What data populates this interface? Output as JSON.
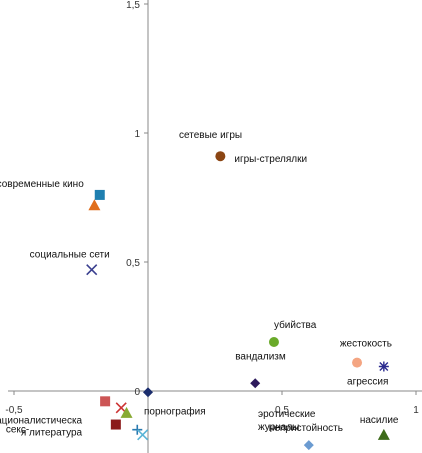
{
  "chart_data": {
    "type": "scatter",
    "title": "",
    "xlabel": "",
    "ylabel": "",
    "xlim": [
      -0.5,
      1
    ],
    "ylim": [
      -0.2,
      1.5
    ],
    "grid": false,
    "xticks": [
      {
        "value": -0.5,
        "label": "-0,5"
      },
      {
        "value": 0,
        "label": "0"
      },
      {
        "value": 0.5,
        "label": "0,5"
      },
      {
        "value": 1,
        "label": "1"
      }
    ],
    "yticks": [
      {
        "value": 0,
        "label": "0"
      },
      {
        "value": 0.5,
        "label": "0,5"
      },
      {
        "value": 1,
        "label": "1"
      },
      {
        "value": 1.5,
        "label": "1,5"
      }
    ],
    "points": [
      {
        "x": 0.27,
        "y": 0.91,
        "marker": "circle",
        "color": "#8b4513",
        "label": "игры-стрелялки"
      },
      {
        "x": -0.18,
        "y": 0.76,
        "marker": "square",
        "color": "#1f7fb0",
        "label": "современные кино"
      },
      {
        "x": -0.2,
        "y": 0.72,
        "marker": "triangle",
        "color": "#e06e1c",
        "label": ""
      },
      {
        "x": -0.21,
        "y": 0.47,
        "marker": "x",
        "color": "#3a3f8f",
        "label": "социальные сети"
      },
      {
        "x": 0.47,
        "y": 0.19,
        "marker": "circle",
        "color": "#6aaa2a",
        "label": "убийства"
      },
      {
        "x": 0.78,
        "y": 0.11,
        "marker": "circle",
        "color": "#f4a582",
        "label": "агрессия"
      },
      {
        "x": 0.88,
        "y": 0.095,
        "marker": "asterisk",
        "color": "#2b2b8f",
        "label": "жестокость"
      },
      {
        "x": 0.4,
        "y": 0.03,
        "marker": "diamond",
        "color": "#2d1a5c",
        "label": "вандализм"
      },
      {
        "x": 0.0,
        "y": -0.005,
        "marker": "diamond",
        "color": "#1a2c6c",
        "label": "порнография"
      },
      {
        "x": -0.16,
        "y": -0.04,
        "marker": "square",
        "color": "#cc5555",
        "label": "националистическая литература"
      },
      {
        "x": -0.1,
        "y": -0.065,
        "marker": "x",
        "color": "#cc3333",
        "label": ""
      },
      {
        "x": -0.08,
        "y": -0.085,
        "marker": "triangle",
        "color": "#88aa33",
        "label": ""
      },
      {
        "x": -0.12,
        "y": -0.13,
        "marker": "square",
        "color": "#8b1a1a",
        "label": "секс-"
      },
      {
        "x": -0.04,
        "y": -0.15,
        "marker": "plus",
        "color": "#2a7ab0",
        "label": ""
      },
      {
        "x": -0.02,
        "y": -0.17,
        "marker": "x",
        "color": "#5ab4d6",
        "label": ""
      },
      {
        "x": 0.6,
        "y": -0.21,
        "marker": "diamond",
        "color": "#6b9bd1",
        "label": "непристойность"
      },
      {
        "x": 0.88,
        "y": -0.17,
        "marker": "triangle",
        "color": "#3d6b1a",
        "label": "насилие"
      },
      {
        "x": 0.5,
        "y": -0.1,
        "marker": "none",
        "color": "#000000",
        "label": "эротические журналы"
      },
      {
        "x": 0.25,
        "y": 0.98,
        "marker": "none",
        "color": "#000000",
        "label": "сетевые игры"
      }
    ]
  }
}
